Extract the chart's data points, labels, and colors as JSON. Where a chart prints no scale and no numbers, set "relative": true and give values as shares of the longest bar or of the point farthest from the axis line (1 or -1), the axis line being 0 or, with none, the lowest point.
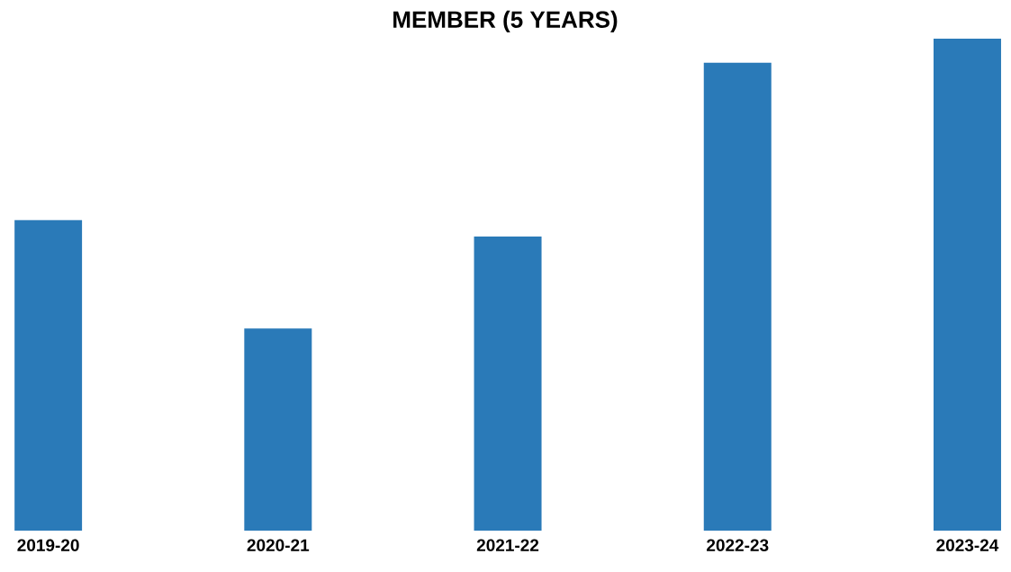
{
  "chart_data": {
    "type": "bar",
    "title": "MEMBER (5 YEARS)",
    "categories": [
      "2019-20",
      "2020-21",
      "2021-22",
      "2022-23",
      "2023-24"
    ],
    "values": [
      0.631,
      0.411,
      0.598,
      0.951,
      1
    ],
    "color": "#2a7ab8",
    "relative": true
  }
}
